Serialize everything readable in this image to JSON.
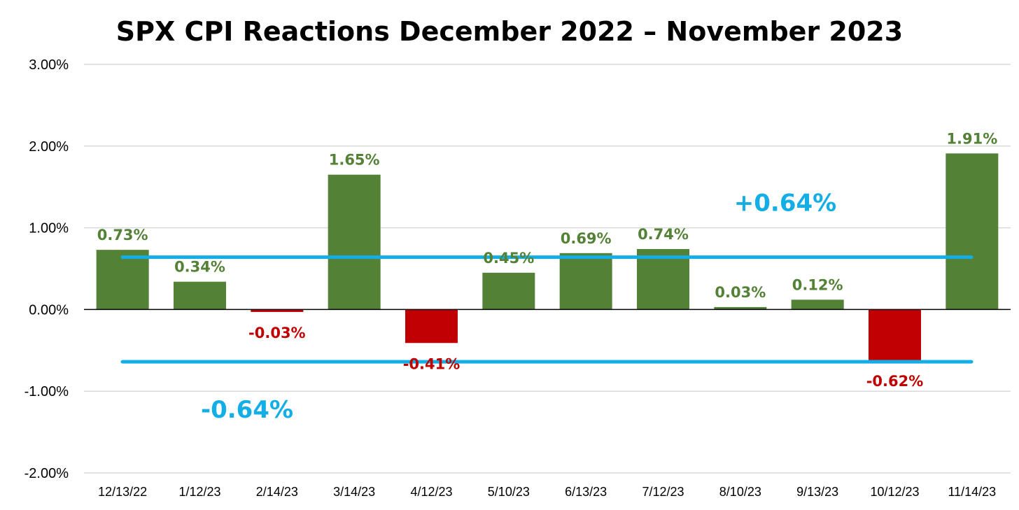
{
  "chart_data": {
    "type": "bar",
    "title": "SPX CPI Reactions December 2022 – November 2023",
    "xlabel": "",
    "ylabel": "",
    "categories": [
      "12/13/22",
      "1/12/23",
      "2/14/23",
      "3/14/23",
      "4/12/23",
      "5/10/23",
      "6/13/23",
      "7/12/23",
      "8/10/23",
      "9/13/23",
      "10/12/23",
      "11/14/23"
    ],
    "values": [
      0.73,
      0.34,
      -0.03,
      1.65,
      -0.41,
      0.45,
      0.69,
      0.74,
      0.03,
      0.12,
      -0.62,
      1.91
    ],
    "data_labels": [
      "0.73%",
      "0.34%",
      "-0.03%",
      "1.65%",
      "-0.41%",
      "0.45%",
      "0.69%",
      "0.74%",
      "0.03%",
      "0.12%",
      "-0.62%",
      "1.91%"
    ],
    "ylim": [
      -2,
      3
    ],
    "yticks": [
      3,
      2,
      1,
      0,
      -1,
      -2
    ],
    "ytick_labels": [
      "3.00%",
      "2.00%",
      "1.00%",
      "0.00%",
      "-1.00%",
      "-2.00%"
    ],
    "grid": true,
    "legend": "none",
    "reference_lines": [
      {
        "value": 0.64,
        "label": "+0.64%"
      },
      {
        "value": -0.64,
        "label": "-0.64%"
      }
    ],
    "colors": {
      "positive": "#538135",
      "negative": "#c00000",
      "reference": "#12aee5",
      "grid": "#d9d9d9",
      "axis": "#000000"
    }
  }
}
